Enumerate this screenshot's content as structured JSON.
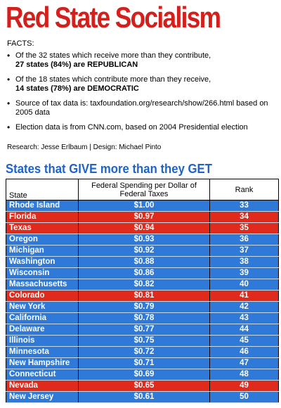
{
  "title": "Red State Socialism",
  "facts_label": "FACTS:",
  "facts": [
    {
      "text": "Of the 32 states which receive more than they contribute,",
      "bold": "27 states (84%) are REPUBLICAN"
    },
    {
      "text": "Of the 18 states which contribute more than they receive,",
      "bold": "14 states (78%) are DEMOCRATIC"
    },
    {
      "text": "Source of tax data is: taxfoundation.org/research/show/266.html based on 2005 data",
      "bold": ""
    },
    {
      "text": "Election data is from CNN.com, based on 2004 Presidential election",
      "bold": ""
    }
  ],
  "credits": "Research: Jesse Erlbaum | Design: Michael Pinto",
  "section_title": "States that GIVE more than they GET",
  "table": {
    "headers": [
      "State",
      "Federal Spending per Dollar of Federal Taxes",
      "Rank"
    ],
    "colors": {
      "republican": "#e02a1c",
      "democratic": "#2f7ad8"
    },
    "rows": [
      {
        "state": "Rhode Island",
        "value": "$1.00",
        "rank": "33",
        "party": "blue"
      },
      {
        "state": "Florida",
        "value": "$0.97",
        "rank": "34",
        "party": "red"
      },
      {
        "state": "Texas",
        "value": "$0.94",
        "rank": "35",
        "party": "red"
      },
      {
        "state": "Oregon",
        "value": "$0.93",
        "rank": "36",
        "party": "blue"
      },
      {
        "state": "Michigan",
        "value": "$0.92",
        "rank": "37",
        "party": "blue"
      },
      {
        "state": "Washington",
        "value": "$0.88",
        "rank": "38",
        "party": "blue"
      },
      {
        "state": "Wisconsin",
        "value": "$0.86",
        "rank": "39",
        "party": "blue"
      },
      {
        "state": "Massachusetts",
        "value": "$0.82",
        "rank": "40",
        "party": "blue"
      },
      {
        "state": "Colorado",
        "value": "$0.81",
        "rank": "41",
        "party": "red"
      },
      {
        "state": "New York",
        "value": "$0.79",
        "rank": "42",
        "party": "blue"
      },
      {
        "state": "California",
        "value": "$0.78",
        "rank": "43",
        "party": "blue"
      },
      {
        "state": "Delaware",
        "value": "$0.77",
        "rank": "44",
        "party": "blue"
      },
      {
        "state": "Illinois",
        "value": "$0.75",
        "rank": "45",
        "party": "blue"
      },
      {
        "state": "Minnesota",
        "value": "$0.72",
        "rank": "46",
        "party": "blue"
      },
      {
        "state": "New Hampshire",
        "value": "$0.71",
        "rank": "47",
        "party": "blue"
      },
      {
        "state": "Connecticut",
        "value": "$0.69",
        "rank": "48",
        "party": "blue"
      },
      {
        "state": "Nevada",
        "value": "$0.65",
        "rank": "49",
        "party": "red"
      },
      {
        "state": "New Jersey",
        "value": "$0.61",
        "rank": "50",
        "party": "blue"
      }
    ]
  }
}
